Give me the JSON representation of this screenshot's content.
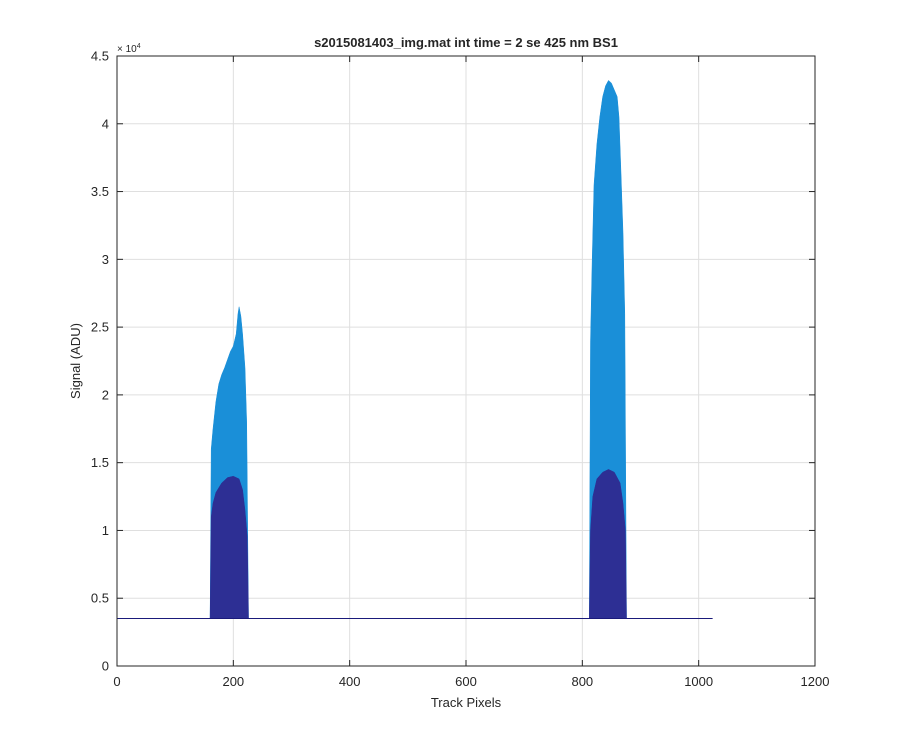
{
  "chart_data": {
    "type": "area",
    "title": "s2015081403_img.mat int time = 2 se  425 nm BS1",
    "xlabel": "Track Pixels",
    "ylabel": "Signal (ADU)",
    "xlim": [
      0,
      1200
    ],
    "ylim": [
      0,
      45000
    ],
    "y_exponent_label": "× 10",
    "y_exponent_power": "4",
    "grid": true,
    "legend": "none",
    "x_ticks": [
      0,
      200,
      400,
      600,
      800,
      1000,
      1200
    ],
    "x_tick_labels": [
      "0",
      "200",
      "400",
      "600",
      "800",
      "1000",
      "1200"
    ],
    "y_ticks": [
      0,
      5000,
      10000,
      15000,
      20000,
      25000,
      30000,
      35000,
      40000,
      45000
    ],
    "y_tick_labels": [
      "0",
      "0.5",
      "1",
      "1.5",
      "2",
      "2.5",
      "3",
      "3.5",
      "4",
      "4.5"
    ],
    "baseline": {
      "value": 3500,
      "x_range": [
        0,
        1024
      ],
      "color": "#1a1a7a"
    },
    "series": [
      {
        "color": "#1a8fd8",
        "points": [
          [
            160,
            3500
          ],
          [
            162,
            16000
          ],
          [
            165,
            17500
          ],
          [
            170,
            19500
          ],
          [
            175,
            20800
          ],
          [
            180,
            21500
          ],
          [
            185,
            22000
          ],
          [
            190,
            22600
          ],
          [
            195,
            23200
          ],
          [
            200,
            23600
          ],
          [
            205,
            24500
          ],
          [
            208,
            26000
          ],
          [
            210,
            26500
          ],
          [
            213,
            25800
          ],
          [
            216,
            24500
          ],
          [
            220,
            22000
          ],
          [
            223,
            18000
          ],
          [
            226,
            3500
          ],
          [
            812,
            3500
          ],
          [
            814,
            24000
          ],
          [
            817,
            30000
          ],
          [
            820,
            35500
          ],
          [
            825,
            38500
          ],
          [
            830,
            40500
          ],
          [
            835,
            42000
          ],
          [
            840,
            42800
          ],
          [
            845,
            43200
          ],
          [
            850,
            43000
          ],
          [
            855,
            42500
          ],
          [
            860,
            42000
          ],
          [
            863,
            40500
          ],
          [
            866,
            37000
          ],
          [
            870,
            32000
          ],
          [
            873,
            26000
          ],
          [
            876,
            3500
          ]
        ]
      },
      {
        "color": "#2d2f94",
        "points": [
          [
            160,
            3500
          ],
          [
            162,
            11000
          ],
          [
            165,
            12000
          ],
          [
            170,
            12800
          ],
          [
            180,
            13500
          ],
          [
            190,
            13900
          ],
          [
            200,
            14000
          ],
          [
            210,
            13800
          ],
          [
            216,
            13000
          ],
          [
            220,
            11500
          ],
          [
            224,
            9500
          ],
          [
            226,
            3500
          ],
          [
            812,
            3500
          ],
          [
            814,
            10000
          ],
          [
            818,
            12500
          ],
          [
            825,
            13800
          ],
          [
            835,
            14300
          ],
          [
            845,
            14500
          ],
          [
            855,
            14300
          ],
          [
            865,
            13500
          ],
          [
            870,
            12000
          ],
          [
            874,
            10000
          ],
          [
            876,
            3500
          ]
        ]
      }
    ]
  }
}
